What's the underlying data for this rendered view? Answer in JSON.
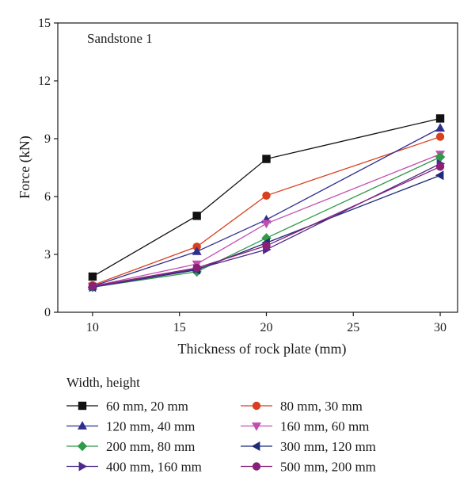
{
  "chart_data": {
    "type": "line",
    "annotation": "Sandstone 1",
    "xlabel": "Thickness of rock plate (mm)",
    "ylabel": "Force (kN)",
    "xlim": [
      8,
      31
    ],
    "ylim": [
      0,
      15
    ],
    "xticks": [
      10,
      15,
      20,
      25,
      30
    ],
    "yticks": [
      0,
      3,
      6,
      9,
      12,
      15
    ],
    "grid": false,
    "legend_title": "Width, height",
    "legend_position": "below-plot",
    "x": [
      10,
      16,
      20,
      30
    ],
    "series": [
      {
        "name": "60 mm, 20 mm",
        "color": "#111111",
        "marker": "square",
        "values": [
          1.85,
          5.0,
          7.95,
          10.05
        ]
      },
      {
        "name": "80 mm, 30 mm",
        "color": "#d8411f",
        "marker": "circle",
        "values": [
          1.4,
          3.4,
          6.05,
          9.1
        ]
      },
      {
        "name": "120 mm, 40 mm",
        "color": "#2e2e8f",
        "marker": "triangle-up",
        "values": [
          1.35,
          3.15,
          4.8,
          9.55
        ]
      },
      {
        "name": "160 mm, 60 mm",
        "color": "#c24fb0",
        "marker": "triangle-down",
        "values": [
          1.35,
          2.5,
          4.6,
          8.2
        ]
      },
      {
        "name": "200 mm, 80 mm",
        "color": "#2f9a47",
        "marker": "diamond",
        "values": [
          1.3,
          2.1,
          3.85,
          8.05
        ]
      },
      {
        "name": "300 mm, 120 mm",
        "color": "#1f2a7a",
        "marker": "triangle-left",
        "values": [
          1.3,
          2.2,
          3.6,
          7.1
        ]
      },
      {
        "name": "400 mm, 160 mm",
        "color": "#4b2a8a",
        "marker": "triangle-right",
        "values": [
          1.3,
          2.25,
          3.25,
          7.7
        ]
      },
      {
        "name": "500 mm, 200 mm",
        "color": "#8a1f78",
        "marker": "circle",
        "values": [
          1.35,
          2.3,
          3.45,
          7.55
        ]
      }
    ]
  }
}
